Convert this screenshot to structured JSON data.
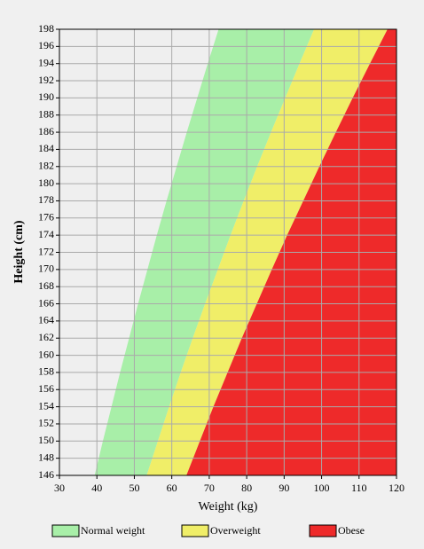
{
  "chart_data": {
    "type": "area-band",
    "x_label": "Weight (kg)",
    "y_label": "Height (cm)",
    "y": [
      146,
      150,
      154,
      158,
      162,
      166,
      170,
      174,
      178,
      182,
      186,
      190,
      194,
      198
    ],
    "series": [
      {
        "name": "Normal weight",
        "color": "#a8efa8",
        "values": [
          39.4,
          41.6,
          43.9,
          46.2,
          48.6,
          51.0,
          53.5,
          56.0,
          58.6,
          61.3,
          64.0,
          66.8,
          69.6,
          72.5
        ]
      },
      {
        "name": "Overweight",
        "color": "#f0ee68",
        "values": [
          53.3,
          56.3,
          59.3,
          62.4,
          65.6,
          68.9,
          72.3,
          75.7,
          79.2,
          82.8,
          86.5,
          90.3,
          94.1,
          98.0
        ]
      },
      {
        "name": "Obese",
        "color": "#ee2a2a",
        "values": [
          63.9,
          67.5,
          71.1,
          74.9,
          78.7,
          82.7,
          86.7,
          90.8,
          95.1,
          99.4,
          103.8,
          108.3,
          112.9,
          117.6
        ]
      }
    ],
    "xlim": [
      30,
      120
    ],
    "xticks": [
      30,
      40,
      50,
      60,
      70,
      80,
      90,
      100,
      110,
      120
    ],
    "ylim": [
      146,
      198
    ],
    "yticks": [
      146,
      148,
      150,
      152,
      154,
      156,
      158,
      160,
      162,
      164,
      166,
      168,
      170,
      172,
      174,
      176,
      178,
      180,
      182,
      184,
      186,
      188,
      190,
      192,
      194,
      196,
      198
    ],
    "grid": true
  }
}
